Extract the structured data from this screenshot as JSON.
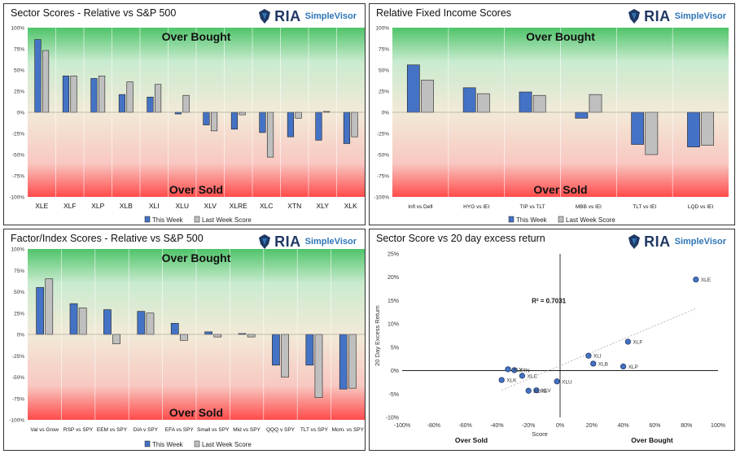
{
  "brand": {
    "name": "RIA",
    "product": "SimpleVisor"
  },
  "colors": {
    "this_week": "#4472c4",
    "last_week": "#bfbfbf",
    "overbought": "#4fc46a",
    "oversold": "#ff4b4b",
    "neutral": "#f2ead8",
    "dot": "#4472c4"
  },
  "zone_labels": {
    "over_bought": "Over Bought",
    "over_sold": "Over Sold"
  },
  "chart_data": [
    {
      "id": "sector",
      "type": "bar",
      "title": "Sector Scores - Relative vs S&P 500",
      "ylim": [
        -100,
        100
      ],
      "yticks": [
        "100%",
        "75%",
        "50%",
        "25%",
        "0%",
        "-25%",
        "-50%",
        "-75%",
        "-100%"
      ],
      "categories": [
        "XLE",
        "XLF",
        "XLP",
        "XLB",
        "XLI",
        "XLU",
        "XLV",
        "XLRE",
        "XLC",
        "XTN",
        "XLY",
        "XLK"
      ],
      "series": [
        {
          "name": "This Week",
          "values": [
            86,
            43,
            40,
            21,
            18,
            -2,
            -15,
            -20,
            -24,
            -29,
            -33,
            -37
          ]
        },
        {
          "name": "Last Week Score",
          "values": [
            73,
            43,
            43,
            36,
            33,
            20,
            -22,
            -3,
            -53,
            -7,
            1,
            -29
          ]
        }
      ]
    },
    {
      "id": "fixed_income",
      "type": "bar",
      "title": "Relative Fixed Income Scores",
      "ylim": [
        -100,
        100
      ],
      "yticks": [
        "100%",
        "75%",
        "50%",
        "25%",
        "0%",
        "-25%",
        "-50%",
        "-75%",
        "-100%"
      ],
      "categories": [
        "Infl vs Defl",
        "HYG vs IEI",
        "TIP vs TLT",
        "MBB vs IEI",
        "TLT vs IEI",
        "LQD vs IEI"
      ],
      "series": [
        {
          "name": "This Week",
          "values": [
            56,
            29,
            24,
            -7,
            -38,
            -41
          ]
        },
        {
          "name": "Last Week Score",
          "values": [
            38,
            22,
            20,
            21,
            -50,
            -39
          ]
        }
      ]
    },
    {
      "id": "factor",
      "type": "bar",
      "title": "Factor/Index Scores - Relative vs S&P 500",
      "ylim": [
        -100,
        100
      ],
      "yticks": [
        "100%",
        "75%",
        "50%",
        "25%",
        "0%",
        "-25%",
        "-50%",
        "-75%",
        "-100%"
      ],
      "categories": [
        "Val vs Grow",
        "RSP vs SPY",
        "EEM vs SPY",
        "DIA v SPY",
        "EFA vs SPY",
        "Small vs SPY",
        "Mid vs SPY",
        "QQQ v SPY",
        "TLT vs SPY",
        "Mom. vs SPY"
      ],
      "series": [
        {
          "name": "This Week",
          "values": [
            55,
            36,
            29,
            27,
            13,
            3,
            1,
            -36,
            -36,
            -64
          ]
        },
        {
          "name": "Last Week Score",
          "values": [
            65,
            31,
            -11,
            25,
            -7,
            -3,
            -3,
            -50,
            -74,
            -63
          ]
        }
      ]
    },
    {
      "id": "scatter",
      "type": "scatter",
      "title": "Sector Score vs 20 day excess return",
      "xlabel": "Score",
      "ylabel": "20 Day Excess Return",
      "xlim": [
        -100,
        100
      ],
      "ylim": [
        -10,
        25
      ],
      "xticks": [
        "-100%",
        "-80%",
        "-60%",
        "-40%",
        "-20%",
        "0%",
        "20%",
        "40%",
        "60%",
        "80%",
        "100%"
      ],
      "yticks": [
        "25%",
        "20%",
        "15%",
        "10%",
        "5%",
        "0%",
        "-5%",
        "-10%"
      ],
      "r2_label": "R² = 0.7031",
      "x_left_label": "Over Sold",
      "x_right_label": "Over Bought",
      "points": [
        {
          "label": "XLE",
          "x": 86,
          "y": 19.5
        },
        {
          "label": "XLF",
          "x": 43,
          "y": 6.2
        },
        {
          "label": "XLP",
          "x": 40,
          "y": 0.9
        },
        {
          "label": "XLB",
          "x": 21,
          "y": 1.5
        },
        {
          "label": "XLI",
          "x": 18,
          "y": 3.2
        },
        {
          "label": "XLU",
          "x": -2,
          "y": -2.3
        },
        {
          "label": "XLV",
          "x": -15,
          "y": -4.2
        },
        {
          "label": "XLRE",
          "x": -20,
          "y": -4.3
        },
        {
          "label": "XLC",
          "x": -24,
          "y": -1.1
        },
        {
          "label": "XTN",
          "x": -29,
          "y": 0.1
        },
        {
          "label": "XLY",
          "x": -33,
          "y": 0.3
        },
        {
          "label": "XLK",
          "x": -37,
          "y": -2.0
        }
      ],
      "trend": {
        "x0": -37,
        "y0": -4.2,
        "x1": 86,
        "y1": 13.3
      }
    }
  ]
}
